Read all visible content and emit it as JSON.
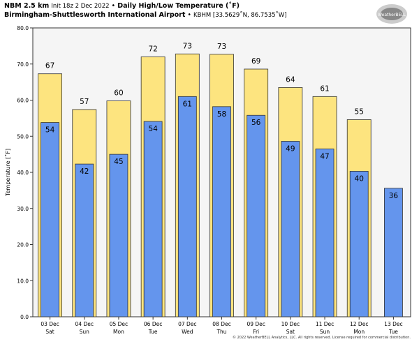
{
  "header": {
    "model": "NBM 2.5 km",
    "init": "Init 18z 2 Dec 2022",
    "sep": "•",
    "product": "Daily High/Low Temperature (˚F)",
    "station": "Birmingham-Shuttlesworth International Airport",
    "station_info": "KBHM [33.5629˚N, 86.7535˚W]"
  },
  "logo_text": "WeatherBELL",
  "copyright": "© 2022 WeatherBELL Analytics, LLC. All rights reserved. License required for commercial distribution.",
  "colors": {
    "high": "#fde47f",
    "low": "#6495ed",
    "plot_bg": "#f5f5f5"
  },
  "chart_data": {
    "type": "bar",
    "title": "Daily High/Low Temperature (˚F)",
    "ylabel": "Temperature [˚F]",
    "xlabel": "",
    "ylim": [
      0,
      80
    ],
    "yticks": [
      "0.0",
      "10.0",
      "20.0",
      "30.0",
      "40.0",
      "50.0",
      "60.0",
      "70.0",
      "80.0"
    ],
    "categories": [
      [
        "03 Dec",
        "Sat"
      ],
      [
        "04 Dec",
        "Sun"
      ],
      [
        "05 Dec",
        "Mon"
      ],
      [
        "06 Dec",
        "Tue"
      ],
      [
        "07 Dec",
        "Wed"
      ],
      [
        "08 Dec",
        "Thu"
      ],
      [
        "09 Dec",
        "Fri"
      ],
      [
        "10 Dec",
        "Sat"
      ],
      [
        "11 Dec",
        "Sun"
      ],
      [
        "12 Dec",
        "Mon"
      ],
      [
        "13 Dec",
        "Tue"
      ]
    ],
    "series": [
      {
        "name": "High",
        "values": [
          67.3,
          57.4,
          59.8,
          72.0,
          72.8,
          72.7,
          68.6,
          63.5,
          61.0,
          54.6,
          null
        ],
        "labels": [
          "67",
          "57",
          "60",
          "72",
          "73",
          "73",
          "69",
          "64",
          "61",
          "55",
          null
        ]
      },
      {
        "name": "Low",
        "values": [
          53.8,
          42.3,
          45.0,
          54.1,
          61.0,
          58.2,
          55.8,
          48.6,
          46.5,
          40.3,
          35.6
        ],
        "labels": [
          "54",
          "42",
          "45",
          "54",
          "61",
          "58",
          "56",
          "49",
          "47",
          "40",
          "36"
        ]
      }
    ]
  }
}
